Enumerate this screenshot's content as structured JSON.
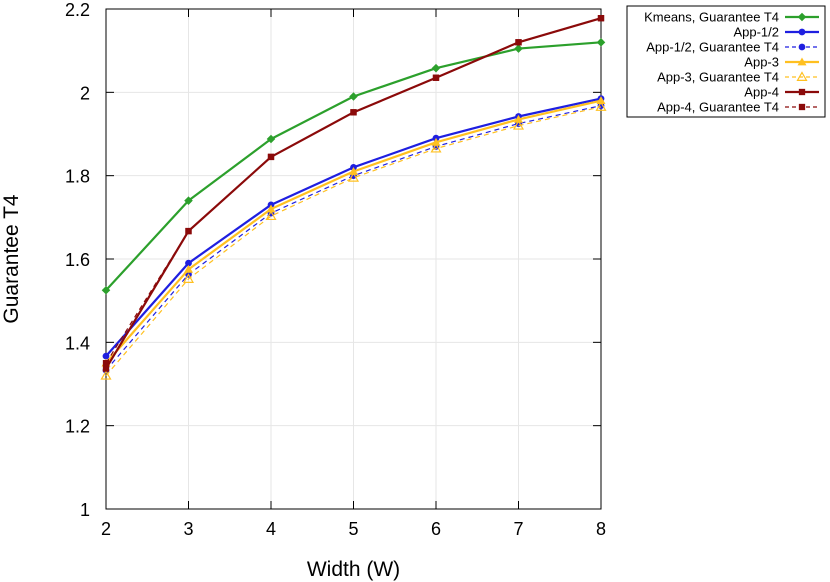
{
  "chart_data": {
    "type": "line",
    "xlabel": "Width (W)",
    "ylabel": "Guarantee T4",
    "xlim": [
      2,
      8
    ],
    "ylim": [
      1,
      2.2
    ],
    "xticks": [
      "2",
      "3",
      "4",
      "5",
      "6",
      "7",
      "8"
    ],
    "yticks": [
      "1",
      "1.2",
      "1.4",
      "1.6",
      "1.8",
      "2",
      "2.2"
    ],
    "grid": true,
    "legend_position": "outside-top-right",
    "x": [
      2,
      3,
      4,
      5,
      6,
      7,
      8
    ],
    "series": [
      {
        "name": "Kmeans, Guarantee T4",
        "values": [
          1.525,
          1.74,
          1.888,
          1.99,
          2.058,
          2.105,
          2.12
        ],
        "color": "#2ca02c",
        "marker": "diamond",
        "dash": "solid"
      },
      {
        "name": "App-1/2",
        "values": [
          1.367,
          1.59,
          1.73,
          1.82,
          1.89,
          1.942,
          1.985
        ],
        "color": "#1f1fe0",
        "marker": "circle",
        "dash": "solid"
      },
      {
        "name": "App-1/2, Guarantee T4",
        "values": [
          1.333,
          1.563,
          1.71,
          1.8,
          1.87,
          1.925,
          1.968
        ],
        "color": "#1f1fe0",
        "marker": "circle",
        "dash": "dashed"
      },
      {
        "name": "App-3",
        "values": [
          1.35,
          1.575,
          1.72,
          1.81,
          1.88,
          1.935,
          1.98
        ],
        "color": "#ffc020",
        "marker": "triangle",
        "dash": "solid"
      },
      {
        "name": "App-3, Guarantee T4",
        "values": [
          1.32,
          1.552,
          1.703,
          1.795,
          1.865,
          1.92,
          1.965
        ],
        "color": "#ffc020",
        "marker": "triangle-open",
        "dash": "dashed"
      },
      {
        "name": "App-4",
        "values": [
          1.337,
          1.667,
          1.845,
          1.952,
          2.035,
          2.12,
          2.178
        ],
        "color": "#8b0a0a",
        "marker": "square",
        "dash": "solid"
      },
      {
        "name": "App-4, Guarantee T4",
        "values": [
          1.35,
          1.667,
          1.845,
          1.952,
          2.035,
          2.12,
          2.178
        ],
        "color": "#8b0a0a",
        "marker": "square",
        "dash": "dashed"
      }
    ]
  }
}
